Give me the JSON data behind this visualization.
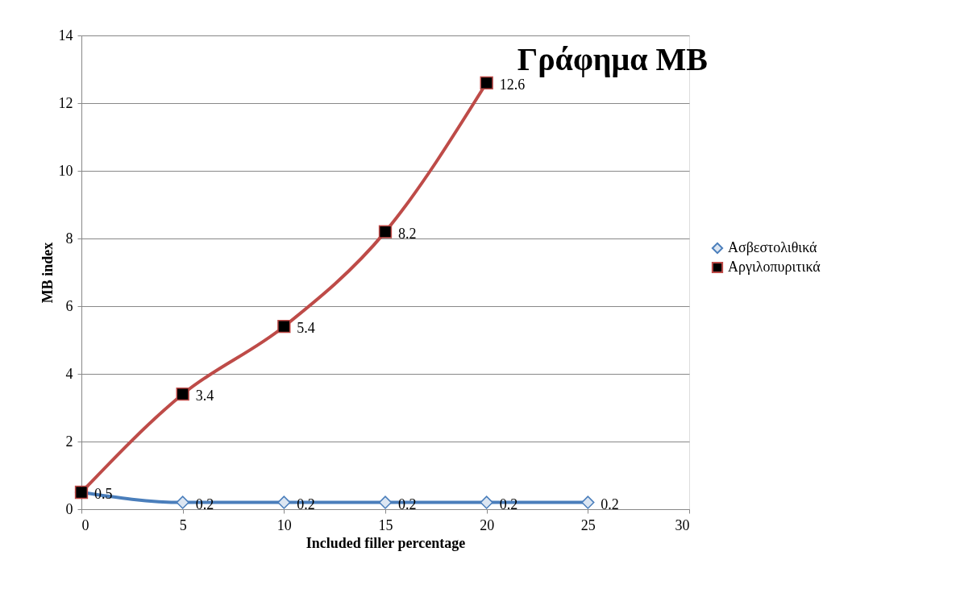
{
  "chart_data": {
    "type": "line",
    "title": "Γράφημα MB",
    "xlabel": "Included filler percentage",
    "ylabel": "MB index",
    "series": [
      {
        "name": "Ασβεστολιθικά",
        "color": "#4a7ebb",
        "marker": "diamond",
        "x": [
          0,
          5,
          10,
          15,
          20,
          25
        ],
        "values": [
          0.5,
          0.2,
          0.2,
          0.2,
          0.2,
          0.2
        ],
        "value_labels": [
          "0.5",
          "0.2",
          "0.2",
          "0.2",
          "0.2",
          "0.2"
        ]
      },
      {
        "name": "Αργιλοπυριτικά",
        "color": "#be4b48",
        "marker": "square",
        "x": [
          0,
          5,
          10,
          15,
          20
        ],
        "values": [
          0.5,
          3.4,
          5.4,
          8.2,
          12.6
        ],
        "value_labels": [
          null,
          "3.4",
          "5.4",
          "8.2",
          "12.6"
        ]
      }
    ],
    "xlim": [
      0,
      30
    ],
    "xticks": [
      0,
      5,
      10,
      15,
      20,
      25,
      30
    ],
    "ylim": [
      0,
      14
    ],
    "yticks": [
      0,
      2,
      4,
      6,
      8,
      10,
      12,
      14
    ],
    "grid": "y",
    "legend": "right"
  }
}
